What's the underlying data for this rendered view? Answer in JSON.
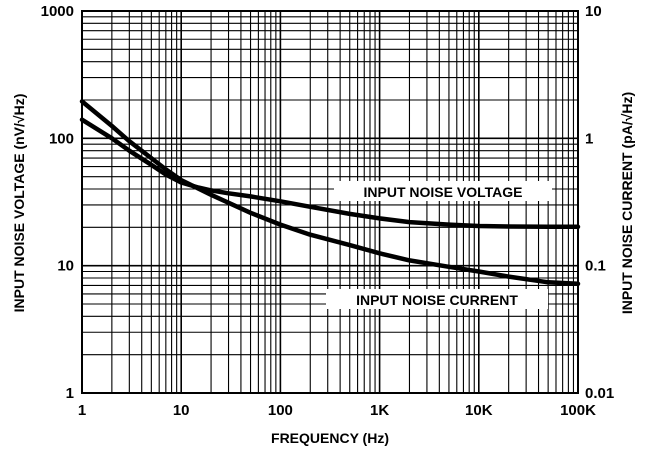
{
  "chart_data": {
    "type": "line",
    "xlabel": "FREQUENCY (Hz)",
    "ylabel": "INPUT NOISE VOLTAGE (nV/√Hz)",
    "y2label": "INPUT NOISE CURRENT (pA/√Hz)",
    "xscale": "log",
    "yscale": "log",
    "xlim": [
      1,
      100000
    ],
    "ylim": [
      1,
      1000
    ],
    "y2lim": [
      0.01,
      10
    ],
    "grid": true,
    "x_tick_labels": [
      "1",
      "10",
      "100",
      "1K",
      "10K",
      "100K"
    ],
    "y_tick_labels": [
      "1",
      "10",
      "100",
      "1000"
    ],
    "y2_tick_labels": [
      "0.01",
      "0.1",
      "1",
      "10"
    ],
    "series": [
      {
        "name": "INPUT NOISE VOLTAGE",
        "axis": "left",
        "x": [
          1,
          2,
          3,
          5,
          7,
          10,
          15,
          20,
          30,
          50,
          100,
          200,
          500,
          1000,
          2000,
          5000,
          10000,
          20000,
          50000,
          100000
        ],
        "y": [
          140,
          100,
          80,
          62,
          52,
          45,
          41,
          39,
          37,
          35,
          32,
          29,
          25.5,
          23.5,
          22,
          21,
          20.5,
          20.3,
          20.2,
          20.2
        ]
      },
      {
        "name": "INPUT NOISE CURRENT",
        "axis": "right",
        "x": [
          1,
          2,
          3,
          5,
          7,
          10,
          20,
          50,
          100,
          200,
          500,
          1000,
          2000,
          5000,
          10000,
          20000,
          50000,
          100000
        ],
        "y": [
          1.95,
          1.25,
          0.95,
          0.7,
          0.57,
          0.47,
          0.36,
          0.26,
          0.21,
          0.175,
          0.145,
          0.125,
          0.11,
          0.098,
          0.09,
          0.082,
          0.074,
          0.072
        ]
      }
    ],
    "annotations": [
      {
        "text": "INPUT NOISE VOLTAGE"
      },
      {
        "text": "INPUT NOISE CURRENT"
      }
    ]
  }
}
